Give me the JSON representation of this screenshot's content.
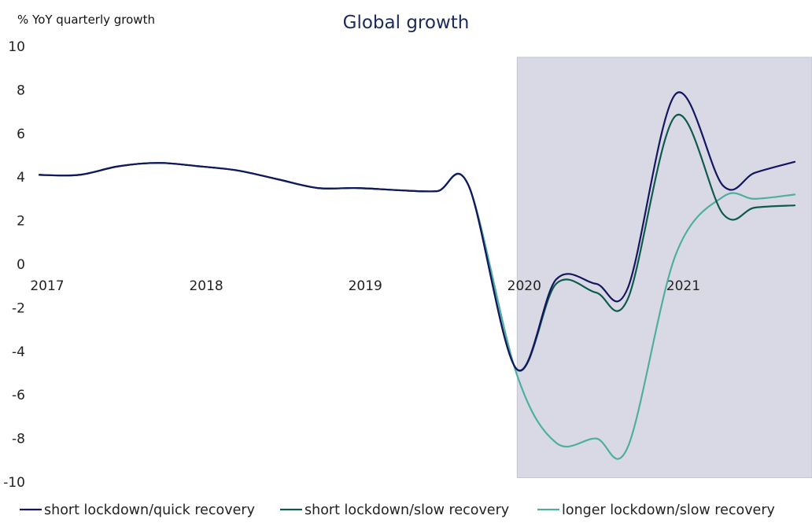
{
  "chart_data": {
    "type": "line",
    "title": "Global growth",
    "ylabel": "% YoY quarterly growth",
    "xlabel": "",
    "ylim": [
      -10,
      10
    ],
    "y_ticks": [
      10,
      8,
      6,
      4,
      2,
      0,
      -2,
      -4,
      -6,
      -8,
      -10
    ],
    "x_tick_labels": [
      {
        "label": "2017",
        "x": 2017.0
      },
      {
        "label": "2018",
        "x": 2018.0
      },
      {
        "label": "2019",
        "x": 2019.0
      },
      {
        "label": "2020",
        "x": 2020.0
      },
      {
        "label": "2021",
        "x": 2021.0
      }
    ],
    "xlim": [
      2017.0,
      2021.75
    ],
    "shaded_region": {
      "x_start": 2020.0,
      "x_end": 2021.75,
      "y_top": 9.5,
      "y_bottom": -9.8,
      "color": "#d9d9e6"
    },
    "legend_position": "bottom",
    "series": [
      {
        "name": "short lockdown/quick recovery",
        "color": "#14165e",
        "x": [
          2017.0,
          2017.25,
          2017.5,
          2017.75,
          2018.0,
          2018.25,
          2018.5,
          2018.75,
          2019.0,
          2019.25,
          2019.5,
          2019.7,
          2020.0,
          2020.25,
          2020.5,
          2020.7,
          2021.0,
          2021.3,
          2021.5,
          2021.75
        ],
        "values": [
          4.1,
          4.1,
          4.5,
          4.65,
          4.5,
          4.3,
          3.9,
          3.5,
          3.5,
          3.4,
          3.35,
          3.6,
          -4.8,
          -0.7,
          -0.9,
          -1.1,
          7.8,
          3.6,
          4.2,
          4.7
        ]
      },
      {
        "name": "short lockdown/slow recovery",
        "color": "#0e5a4c",
        "x": [
          2017.0,
          2017.25,
          2017.5,
          2017.75,
          2018.0,
          2018.25,
          2018.5,
          2018.75,
          2019.0,
          2019.25,
          2019.5,
          2019.7,
          2020.0,
          2020.25,
          2020.5,
          2020.7,
          2021.0,
          2021.3,
          2021.5,
          2021.75
        ],
        "values": [
          4.1,
          4.1,
          4.5,
          4.65,
          4.5,
          4.3,
          3.9,
          3.5,
          3.5,
          3.4,
          3.35,
          3.6,
          -4.8,
          -0.9,
          -1.3,
          -1.6,
          6.8,
          2.3,
          2.6,
          2.7
        ]
      },
      {
        "name": "longer lockdown/slow recovery",
        "color": "#4fae9f",
        "x": [
          2017.0,
          2017.25,
          2017.5,
          2017.75,
          2018.0,
          2018.25,
          2018.5,
          2018.75,
          2019.0,
          2019.25,
          2019.5,
          2019.7,
          2020.0,
          2020.25,
          2020.5,
          2020.7,
          2021.0,
          2021.3,
          2021.5,
          2021.75
        ],
        "values": [
          4.1,
          4.1,
          4.5,
          4.65,
          4.5,
          4.3,
          3.9,
          3.5,
          3.5,
          3.4,
          3.35,
          3.6,
          -5.0,
          -8.2,
          -8.0,
          -8.4,
          0.4,
          3.1,
          3.0,
          3.2
        ]
      }
    ]
  }
}
